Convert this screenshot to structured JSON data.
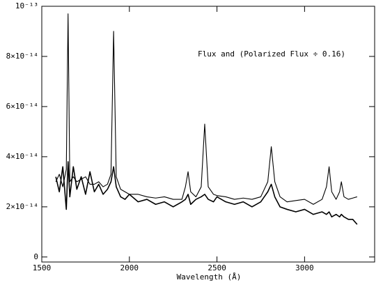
{
  "chart_data": {
    "type": "line",
    "annotation": "Flux and (Polarized Flux ÷ 0.16)",
    "xlabel": "Wavelength (Å)",
    "x": [
      1580,
      1600,
      1620,
      1640,
      1650,
      1660,
      1680,
      1700,
      1725,
      1750,
      1775,
      1800,
      1825,
      1850,
      1875,
      1895,
      1910,
      1925,
      1950,
      1975,
      2000,
      2050,
      2100,
      2150,
      2200,
      2250,
      2300,
      2320,
      2335,
      2350,
      2380,
      2410,
      2430,
      2450,
      2480,
      2500,
      2550,
      2600,
      2650,
      2700,
      2750,
      2790,
      2810,
      2830,
      2860,
      2900,
      2950,
      3000,
      3050,
      3100,
      3125,
      3140,
      3155,
      3180,
      3200,
      3210,
      3225,
      3250,
      3275,
      3300
    ],
    "series": [
      {
        "color": "#000000",
        "values": [
          3e-14,
          3.3e-14,
          2.8e-14,
          3.5e-14,
          9.7e-14,
          3e-14,
          3.2e-14,
          3e-14,
          3.1e-14,
          3.2e-14,
          2.9e-14,
          2.9e-14,
          3e-14,
          2.8e-14,
          2.9e-14,
          3.3e-14,
          9e-14,
          3.2e-14,
          2.7e-14,
          2.6e-14,
          2.5e-14,
          2.5e-14,
          2.4e-14,
          2.35e-14,
          2.4e-14,
          2.3e-14,
          2.3e-14,
          2.8e-14,
          3.4e-14,
          2.6e-14,
          2.4e-14,
          2.8e-14,
          5.3e-14,
          2.8e-14,
          2.5e-14,
          2.45e-14,
          2.4e-14,
          2.3e-14,
          2.35e-14,
          2.3e-14,
          2.4e-14,
          3e-14,
          4.4e-14,
          3e-14,
          2.4e-14,
          2.2e-14,
          2.25e-14,
          2.3e-14,
          2.1e-14,
          2.3e-14,
          2.8e-14,
          3.6e-14,
          2.6e-14,
          2.3e-14,
          2.6e-14,
          3e-14,
          2.4e-14,
          2.3e-14,
          2.35e-14,
          2.4e-14
        ]
      },
      {
        "color": "#000000",
        "values": [
          3.2e-14,
          2.6e-14,
          3.6e-14,
          1.9e-14,
          3.8e-14,
          2.4e-14,
          3.6e-14,
          2.7e-14,
          3.2e-14,
          2.5e-14,
          3.4e-14,
          2.6e-14,
          2.9e-14,
          2.5e-14,
          2.7e-14,
          3e-14,
          3.6e-14,
          2.8e-14,
          2.4e-14,
          2.3e-14,
          2.5e-14,
          2.2e-14,
          2.3e-14,
          2.1e-14,
          2.2e-14,
          2e-14,
          2.2e-14,
          2.3e-14,
          2.5e-14,
          2.1e-14,
          2.3e-14,
          2.4e-14,
          2.5e-14,
          2.3e-14,
          2.2e-14,
          2.4e-14,
          2.2e-14,
          2.1e-14,
          2.2e-14,
          2e-14,
          2.2e-14,
          2.6e-14,
          2.9e-14,
          2.4e-14,
          2e-14,
          1.9e-14,
          1.8e-14,
          1.9e-14,
          1.7e-14,
          1.8e-14,
          1.7e-14,
          1.8e-14,
          1.6e-14,
          1.7e-14,
          1.6e-14,
          1.7e-14,
          1.6e-14,
          1.5e-14,
          1.5e-14,
          1.3e-14
        ]
      }
    ],
    "xlim": [
      1500,
      3400
    ],
    "xticks": [
      1500,
      2000,
      2500,
      3000
    ],
    "ylim": [
      -2e-15,
      1e-13
    ],
    "yticks": [
      0,
      {
        "value": 2e-14,
        "label": "2×10⁻¹⁴"
      },
      {
        "value": 4e-14,
        "label": "4×10⁻¹⁴"
      },
      {
        "value": 6e-14,
        "label": "6×10⁻¹⁴"
      },
      {
        "value": 8e-14,
        "label": "8×10⁻¹⁴"
      },
      {
        "value": 1e-13,
        "label": "10⁻¹³"
      }
    ],
    "grid": false
  }
}
